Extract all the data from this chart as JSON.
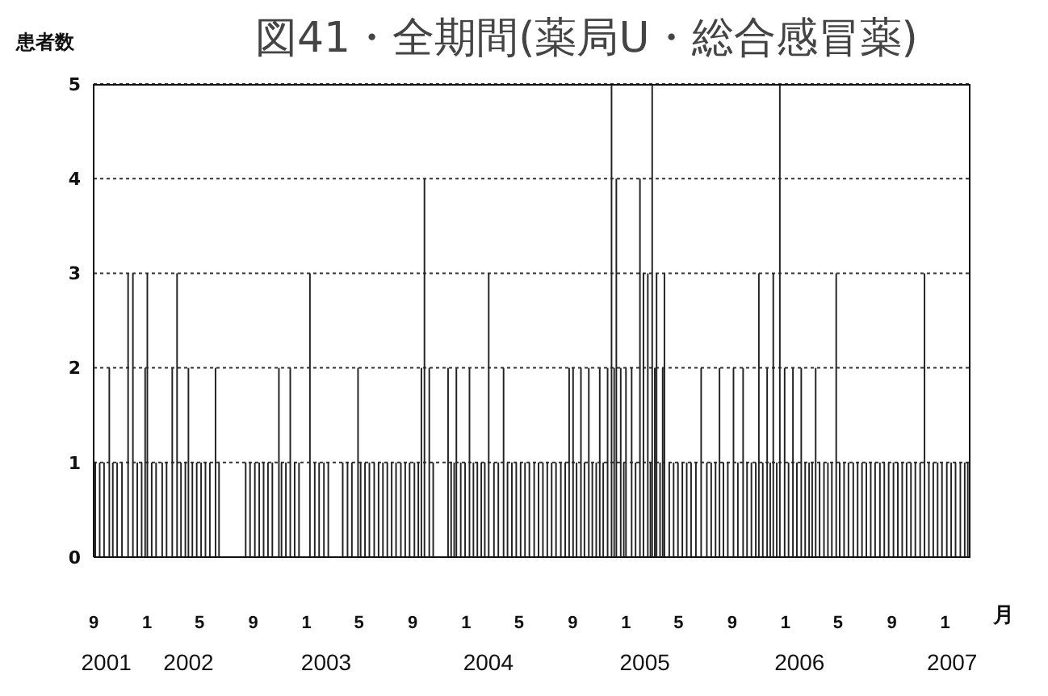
{
  "chart_data": {
    "type": "bar",
    "title": "図41・全期間(薬局U・総合感冒薬)",
    "ylabel": "患者数",
    "xlabel": "月",
    "color": "#222222",
    "x": [
      "2001-09-05",
      "2001-09-15",
      "2001-09-25",
      "2001-10-07",
      "2001-10-15",
      "2001-10-25",
      "2001-11-05",
      "2001-11-19",
      "2001-11-30",
      "2001-12-10",
      "2001-12-20",
      "2001-12-28",
      "2002-01-02",
      "2002-01-12",
      "2002-01-22",
      "2002-02-05",
      "2002-02-15",
      "2002-02-28",
      "2002-03-11",
      "2002-03-20",
      "2002-03-30",
      "2002-04-06",
      "2002-04-15",
      "2002-04-25",
      "2002-05-05",
      "2002-05-15",
      "2002-05-25",
      "2002-06-07",
      "2002-06-15",
      "2002-08-15",
      "2002-08-25",
      "2002-09-05",
      "2002-09-15",
      "2002-09-25",
      "2002-10-05",
      "2002-10-15",
      "2002-10-30",
      "2002-11-05",
      "2002-11-15",
      "2002-11-25",
      "2002-12-05",
      "2002-12-15",
      "2003-01-09",
      "2003-01-20",
      "2003-01-30",
      "2003-02-10",
      "2003-02-20",
      "2003-03-25",
      "2003-04-05",
      "2003-04-15",
      "2003-04-29",
      "2003-05-05",
      "2003-05-15",
      "2003-05-25",
      "2003-06-05",
      "2003-06-15",
      "2003-06-25",
      "2003-07-05",
      "2003-07-15",
      "2003-07-25",
      "2003-08-05",
      "2003-08-15",
      "2003-08-25",
      "2003-09-05",
      "2003-09-14",
      "2003-09-21",
      "2003-09-28",
      "2003-10-09",
      "2003-10-18",
      "2003-11-21",
      "2003-11-28",
      "2003-12-05",
      "2003-12-10",
      "2003-12-20",
      "2003-12-30",
      "2004-01-09",
      "2004-01-18",
      "2004-01-27",
      "2004-02-05",
      "2004-02-13",
      "2004-02-22",
      "2004-03-05",
      "2004-03-15",
      "2004-03-27",
      "2004-04-05",
      "2004-04-15",
      "2004-04-25",
      "2004-05-05",
      "2004-05-15",
      "2004-05-25",
      "2004-06-05",
      "2004-06-15",
      "2004-06-25",
      "2004-07-05",
      "2004-07-15",
      "2004-07-25",
      "2004-08-05",
      "2004-08-15",
      "2004-08-24",
      "2004-09-02",
      "2004-09-10",
      "2004-09-20",
      "2004-09-28",
      "2004-10-08",
      "2004-10-16",
      "2004-10-25",
      "2004-11-02",
      "2004-11-10",
      "2004-11-20",
      "2004-11-29",
      "2004-12-05",
      "2004-12-10",
      "2004-12-20",
      "2004-12-27",
      "2005-01-01",
      "2005-01-14",
      "2005-01-23",
      "2005-02-02",
      "2005-02-10",
      "2005-02-20",
      "2005-02-26",
      "2005-03-02",
      "2005-03-08",
      "2005-03-12",
      "2005-03-20",
      "2005-03-26",
      "2005-03-30",
      "2005-04-10",
      "2005-04-20",
      "2005-04-30",
      "2005-05-10",
      "2005-05-20",
      "2005-05-30",
      "2005-06-10",
      "2005-06-22",
      "2005-07-05",
      "2005-07-15",
      "2005-07-25",
      "2005-08-03",
      "2005-08-12",
      "2005-08-22",
      "2005-09-04",
      "2005-09-14",
      "2005-09-26",
      "2005-10-05",
      "2005-10-15",
      "2005-10-25",
      "2005-11-01",
      "2005-11-10",
      "2005-11-20",
      "2005-11-27",
      "2005-12-04",
      "2005-12-12",
      "2005-12-19",
      "2005-12-30",
      "2006-01-08",
      "2006-01-18",
      "2006-01-27",
      "2006-02-06",
      "2006-02-15",
      "2006-02-24",
      "2006-03-03",
      "2006-03-11",
      "2006-03-20",
      "2006-03-30",
      "2006-04-08",
      "2006-04-17",
      "2006-04-27",
      "2006-05-05",
      "2006-05-15",
      "2006-05-25",
      "2006-06-05",
      "2006-06-15",
      "2006-06-25",
      "2006-07-05",
      "2006-07-15",
      "2006-07-25",
      "2006-08-05",
      "2006-08-15",
      "2006-08-25",
      "2006-09-05",
      "2006-09-15",
      "2006-09-25",
      "2006-10-05",
      "2006-10-15",
      "2006-10-25",
      "2006-11-05",
      "2006-11-15",
      "2006-11-25",
      "2006-12-05",
      "2006-12-15",
      "2006-12-25",
      "2007-01-05",
      "2007-01-15",
      "2007-01-25",
      "2007-02-05",
      "2007-02-15",
      "2007-02-22"
    ],
    "values": [
      1,
      1,
      1,
      2,
      1,
      1,
      1,
      3,
      3,
      1,
      1,
      2,
      3,
      1,
      1,
      1,
      1,
      2,
      3,
      1,
      1,
      2,
      1,
      1,
      1,
      1,
      1,
      2,
      1,
      1,
      1,
      1,
      1,
      1,
      1,
      1,
      2,
      1,
      1,
      2,
      1,
      1,
      3,
      1,
      1,
      1,
      1,
      1,
      1,
      1,
      2,
      1,
      1,
      1,
      1,
      1,
      1,
      1,
      1,
      1,
      1,
      1,
      1,
      1,
      1,
      2,
      4,
      2,
      1,
      2,
      1,
      1,
      2,
      1,
      1,
      2,
      1,
      1,
      1,
      1,
      3,
      1,
      1,
      2,
      1,
      1,
      1,
      1,
      1,
      1,
      1,
      1,
      1,
      1,
      1,
      1,
      1,
      1,
      2,
      2,
      1,
      2,
      1,
      2,
      1,
      1,
      2,
      1,
      2,
      5,
      2,
      4,
      2,
      1,
      2,
      2,
      1,
      4,
      3,
      3,
      1,
      5,
      2,
      3,
      1,
      2,
      3,
      1,
      1,
      1,
      1,
      1,
      1,
      1,
      2,
      1,
      1,
      1,
      2,
      1,
      1,
      2,
      1,
      2,
      1,
      1,
      1,
      3,
      1,
      2,
      1,
      3,
      1,
      5,
      2,
      1,
      2,
      1,
      2,
      1,
      1,
      1,
      2,
      1,
      1,
      1,
      1,
      3,
      1,
      1,
      1,
      1,
      1,
      1,
      1,
      1,
      1,
      1,
      1,
      1,
      1,
      1,
      1,
      1,
      1,
      1,
      1,
      3,
      1,
      1,
      1,
      1,
      1,
      1,
      1,
      1,
      1,
      1
    ],
    "xlim": [
      "2001-09-01",
      "2007-02-28"
    ],
    "xticks": [
      {
        "value": "2001-09-01",
        "label": "9"
      },
      {
        "value": "2002-01-01",
        "label": "1"
      },
      {
        "value": "2002-05-01",
        "label": "5"
      },
      {
        "value": "2002-09-01",
        "label": "9"
      },
      {
        "value": "2003-01-01",
        "label": "1"
      },
      {
        "value": "2003-05-01",
        "label": "5"
      },
      {
        "value": "2003-09-01",
        "label": "9"
      },
      {
        "value": "2004-01-01",
        "label": "1"
      },
      {
        "value": "2004-05-01",
        "label": "5"
      },
      {
        "value": "2004-09-01",
        "label": "9"
      },
      {
        "value": "2005-01-01",
        "label": "1"
      },
      {
        "value": "2005-05-01",
        "label": "5"
      },
      {
        "value": "2005-09-01",
        "label": "9"
      },
      {
        "value": "2006-01-01",
        "label": "1"
      },
      {
        "value": "2006-05-01",
        "label": "5"
      },
      {
        "value": "2006-09-01",
        "label": "9"
      },
      {
        "value": "2007-01-01",
        "label": "1"
      }
    ],
    "x2lim": [
      "2001-09-01",
      "2007-02-28"
    ],
    "x2ticks": [
      {
        "value": "2001-09-30",
        "label": "2001"
      },
      {
        "value": "2002-04-06",
        "label": "2002"
      },
      {
        "value": "2003-02-15",
        "label": "2003"
      },
      {
        "value": "2004-02-21",
        "label": "2004"
      },
      {
        "value": "2005-02-13",
        "label": "2005"
      },
      {
        "value": "2006-02-02",
        "label": "2006"
      },
      {
        "value": "2007-01-17",
        "label": "2007"
      }
    ],
    "ylim": [
      0,
      5
    ],
    "yticks": [
      0,
      1,
      2,
      3,
      4,
      5
    ],
    "grid": "y"
  }
}
